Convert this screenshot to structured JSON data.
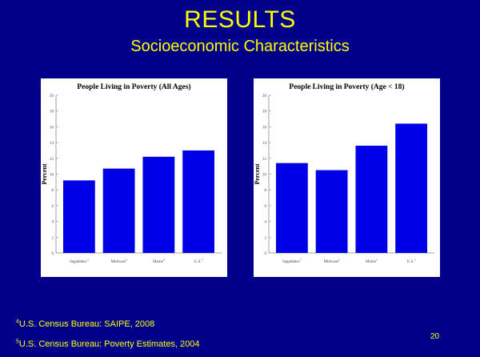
{
  "slide": {
    "title": "RESULTS",
    "subtitle": "Socioeconomic Characteristics",
    "page_number": "20",
    "footnotes": [
      {
        "marker": "4",
        "text": "U.S. Census Bureau: SAIPE, 2008"
      },
      {
        "marker": "5",
        "text": "U.S. Census Bureau: Poverty Estimates, 2004"
      }
    ]
  },
  "colors": {
    "background": "#00008b",
    "text": "#ffff00",
    "bar": "#0000e6"
  },
  "chart_data": [
    {
      "type": "bar",
      "title": "People Living in Poverty (All Ages)",
      "ylabel": "Percent",
      "xlabel": "",
      "categories": [
        "Sagadahoc",
        "Midcoast",
        "Maine",
        "U.S."
      ],
      "category_markers": [
        "4",
        "4",
        "4",
        "4"
      ],
      "values": [
        9.2,
        10.7,
        12.2,
        13.0
      ],
      "ylim": [
        0,
        20
      ],
      "yticks": [
        0,
        2,
        4,
        6,
        8,
        10,
        12,
        14,
        16,
        18,
        20
      ],
      "grid": false
    },
    {
      "type": "bar",
      "title": "People Living in Poverty (Age < 18)",
      "ylabel": "Percent",
      "xlabel": "",
      "categories": [
        "Sagadahoc",
        "Midcoast",
        "Maine",
        "U.S."
      ],
      "category_markers": [
        "5",
        "5",
        "5",
        "5"
      ],
      "values": [
        11.4,
        10.5,
        13.6,
        16.4
      ],
      "ylim": [
        0,
        20
      ],
      "yticks": [
        0,
        2,
        4,
        6,
        8,
        10,
        12,
        14,
        16,
        18,
        20
      ],
      "grid": false
    }
  ]
}
